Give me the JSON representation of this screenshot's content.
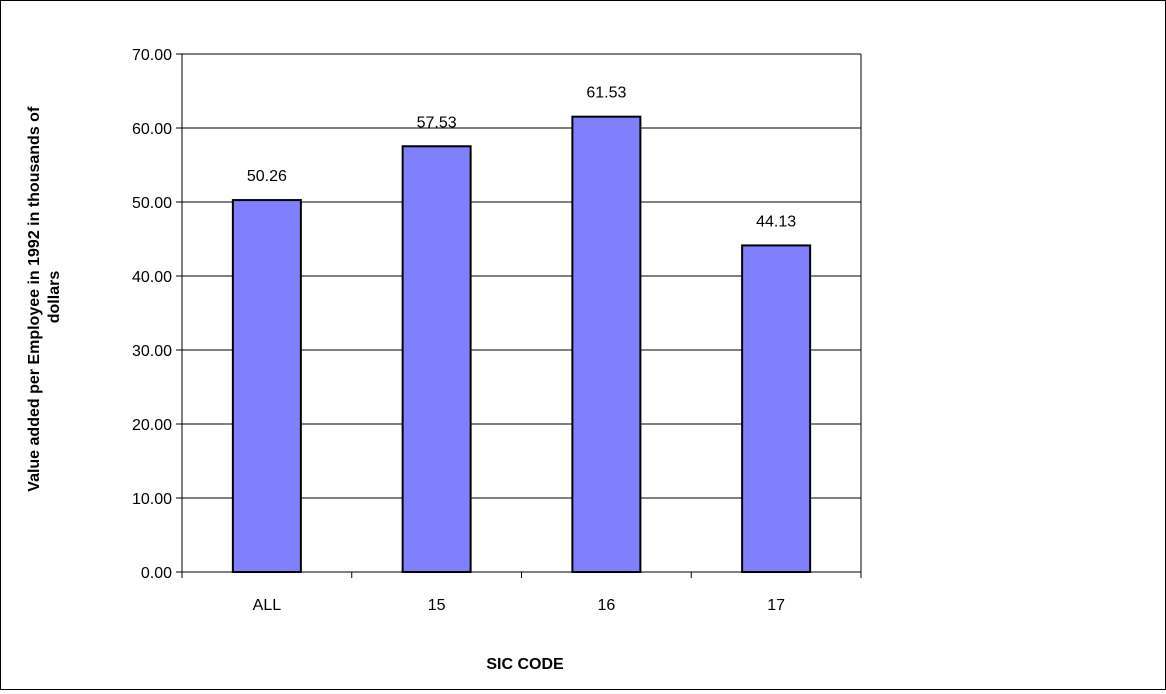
{
  "chart_data": {
    "type": "bar",
    "title": "",
    "xlabel": "SIC CODE",
    "ylabel_lines": [
      "Value added per Employee in 1992 in thousands of",
      "dollars"
    ],
    "categories": [
      "ALL",
      "15",
      "16",
      "17"
    ],
    "values": [
      50.26,
      57.53,
      61.53,
      44.13
    ],
    "value_labels": [
      "50.26",
      "57.53",
      "61.53",
      "44.13"
    ],
    "ylim": [
      0,
      70
    ],
    "yticks": [
      0,
      10,
      20,
      30,
      40,
      50,
      60,
      70
    ],
    "ytick_labels": [
      "0.00",
      "10.00",
      "20.00",
      "30.00",
      "40.00",
      "50.00",
      "60.00",
      "70.00"
    ],
    "grid": true,
    "legend": "none",
    "colors": {
      "bar_fill": "#8080ff",
      "bar_stroke": "#000000",
      "grid": "#000000"
    }
  }
}
